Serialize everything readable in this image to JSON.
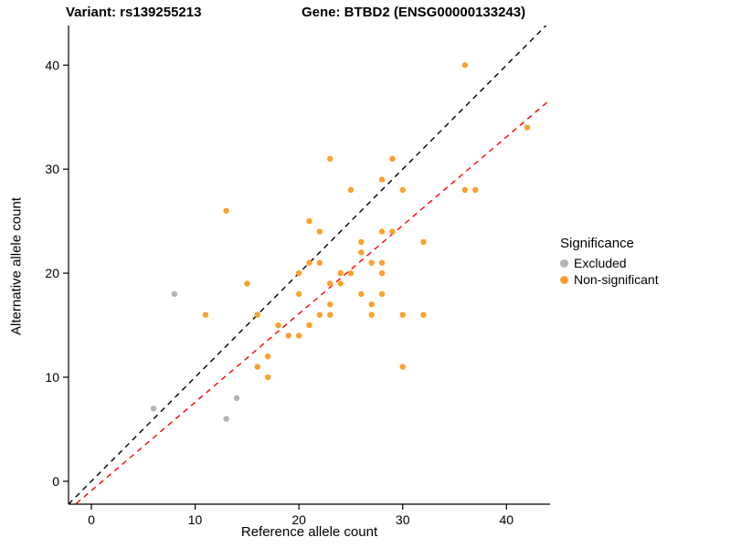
{
  "titles": {
    "left": "Variant: rs139255213",
    "right": "Gene: BTBD2 (ENSG00000133243)"
  },
  "axes": {
    "x_label": "Reference allele count",
    "y_label": "Alternative allele count",
    "x_ticks": [
      0,
      10,
      20,
      30,
      40
    ],
    "y_ticks": [
      0,
      10,
      20,
      30,
      40
    ]
  },
  "legend": {
    "title": "Significance",
    "items": [
      {
        "label": "Excluded",
        "color": "#b4b4b4"
      },
      {
        "label": "Non-significant",
        "color": "#f9a12e"
      }
    ]
  },
  "chart_data": {
    "type": "scatter",
    "title": "Variant: rs139255213  Gene: BTBD2 (ENSG00000133243)",
    "xlabel": "Reference allele count",
    "ylabel": "Alternative allele count",
    "xlim": [
      -2.2,
      44.2
    ],
    "ylim": [
      -2.2,
      43.8
    ],
    "grid": false,
    "legend_position": "right",
    "series": [
      {
        "name": "Excluded",
        "color": "#b4b4b4",
        "points": [
          [
            6,
            7
          ],
          [
            8,
            18
          ],
          [
            13,
            6
          ],
          [
            14,
            8
          ]
        ]
      },
      {
        "name": "Non-significant",
        "color": "#f9a12e",
        "points": [
          [
            11,
            16
          ],
          [
            13,
            26
          ],
          [
            15,
            19
          ],
          [
            16,
            16
          ],
          [
            16,
            11
          ],
          [
            17,
            12
          ],
          [
            17,
            10
          ],
          [
            18,
            15
          ],
          [
            19,
            14
          ],
          [
            20,
            18
          ],
          [
            20,
            20
          ],
          [
            20,
            14
          ],
          [
            21,
            25
          ],
          [
            21,
            21
          ],
          [
            21,
            15
          ],
          [
            22,
            24
          ],
          [
            22,
            21
          ],
          [
            22,
            16
          ],
          [
            23,
            31
          ],
          [
            23,
            19
          ],
          [
            23,
            17
          ],
          [
            23,
            16
          ],
          [
            24,
            20
          ],
          [
            24,
            19
          ],
          [
            25,
            28
          ],
          [
            25,
            20
          ],
          [
            26,
            23
          ],
          [
            26,
            22
          ],
          [
            26,
            18
          ],
          [
            27,
            21
          ],
          [
            27,
            17
          ],
          [
            27,
            16
          ],
          [
            28,
            29
          ],
          [
            28,
            24
          ],
          [
            28,
            21
          ],
          [
            28,
            20
          ],
          [
            28,
            18
          ],
          [
            29,
            31
          ],
          [
            29,
            24
          ],
          [
            30,
            28
          ],
          [
            30,
            16
          ],
          [
            30,
            11
          ],
          [
            32,
            23
          ],
          [
            32,
            16
          ],
          [
            36,
            40
          ],
          [
            36,
            28
          ],
          [
            37,
            28
          ],
          [
            42,
            34
          ]
        ]
      }
    ],
    "lines": [
      {
        "name": "identity-line",
        "color": "#000000",
        "dashed": true,
        "slope": 1.0,
        "intercept": 0.0
      },
      {
        "name": "regression-line",
        "color": "#ff0000",
        "dashed": true,
        "slope": 0.85,
        "intercept": -0.9
      }
    ]
  }
}
